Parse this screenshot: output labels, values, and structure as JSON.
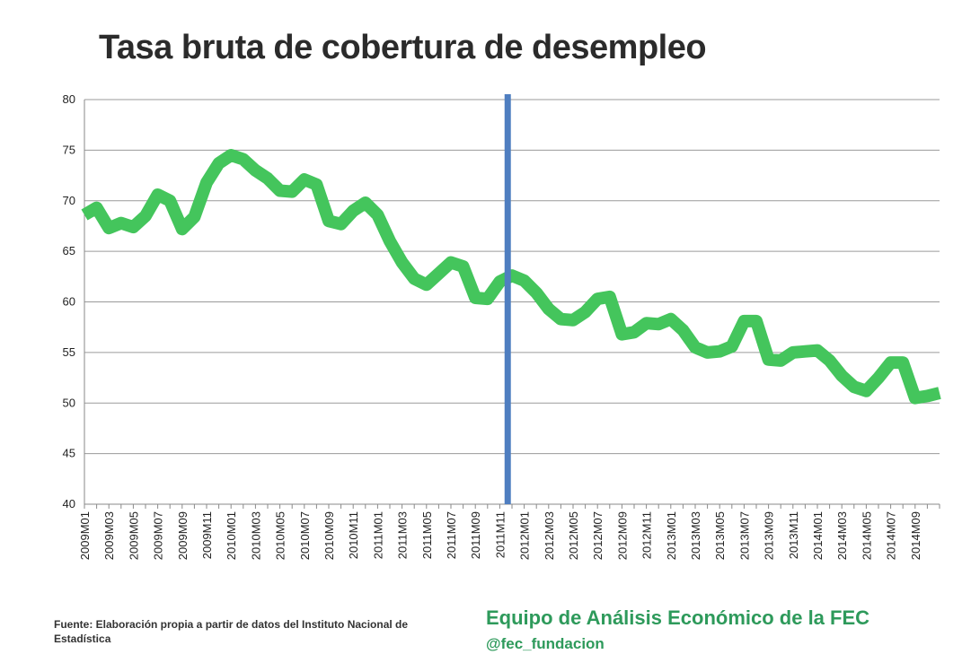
{
  "chart_data": {
    "type": "line",
    "title": "Tasa bruta de cobertura de desempleo",
    "xlabel": "",
    "ylabel": "",
    "ylim": [
      40,
      80
    ],
    "yticks": [
      40,
      45,
      50,
      55,
      60,
      65,
      70,
      75,
      80
    ],
    "grid": true,
    "legend": "none",
    "x": [
      "2009M01",
      "2009M02",
      "2009M03",
      "2009M04",
      "2009M05",
      "2009M06",
      "2009M07",
      "2009M08",
      "2009M09",
      "2009M10",
      "2009M11",
      "2009M12",
      "2010M01",
      "2010M02",
      "2010M03",
      "2010M04",
      "2010M05",
      "2010M06",
      "2010M07",
      "2010M08",
      "2010M09",
      "2010M10",
      "2010M11",
      "2010M12",
      "2011M01",
      "2011M02",
      "2011M03",
      "2011M04",
      "2011M05",
      "2011M06",
      "2011M07",
      "2011M08",
      "2011M09",
      "2011M10",
      "2011M11",
      "2011M12",
      "2012M01",
      "2012M02",
      "2012M03",
      "2012M04",
      "2012M05",
      "2012M06",
      "2012M07",
      "2012M08",
      "2012M09",
      "2012M10",
      "2012M11",
      "2012M12",
      "2013M01",
      "2013M02",
      "2013M03",
      "2013M04",
      "2013M05",
      "2013M06",
      "2013M07",
      "2013M08",
      "2013M09",
      "2013M10",
      "2013M11",
      "2013M12",
      "2014M01",
      "2014M02",
      "2014M03",
      "2014M04",
      "2014M05",
      "2014M06",
      "2014M07",
      "2014M08",
      "2014M09",
      "2014M10",
      "2014M11"
    ],
    "x_tick_labels": [
      "2009M01",
      "2009M03",
      "2009M05",
      "2009M07",
      "2009M09",
      "2009M11",
      "2010M01",
      "2010M03",
      "2010M05",
      "2010M07",
      "2010M09",
      "2010M11",
      "2011M01",
      "2011M03",
      "2011M05",
      "2011M07",
      "2011M09",
      "2011M11",
      "2012M01",
      "2012M03",
      "2012M05",
      "2012M07",
      "2012M09",
      "2012M11",
      "2013M01",
      "2013M03",
      "2013M05",
      "2013M07",
      "2013M09",
      "2013M11",
      "2014M01",
      "2014M03",
      "2014M05",
      "2014M07",
      "2014M09"
    ],
    "series": [
      {
        "values": [
          68.6,
          69.3,
          67.3,
          67.8,
          67.4,
          68.5,
          70.6,
          70.0,
          67.2,
          68.4,
          71.8,
          73.7,
          74.5,
          74.1,
          73.0,
          72.2,
          71.0,
          70.9,
          72.1,
          71.6,
          68.0,
          67.7,
          69.0,
          69.8,
          68.6,
          66.0,
          63.9,
          62.3,
          61.7,
          62.8,
          63.9,
          63.5,
          60.4,
          60.3,
          62.0,
          62.6,
          62.1,
          60.9,
          59.3,
          58.3,
          58.2,
          59.0,
          60.3,
          60.5,
          56.8,
          57.0,
          57.9,
          57.8,
          58.3,
          57.2,
          55.5,
          55.0,
          55.1,
          55.6,
          58.1,
          58.1,
          54.3,
          54.2,
          55.0,
          55.1,
          55.2,
          54.2,
          52.7,
          51.6,
          51.2,
          52.5,
          54.0,
          54.0,
          50.5,
          50.7,
          51.0
        ],
        "color": "#44c55c"
      }
    ],
    "annotations": [
      {
        "type": "vertical-line",
        "x": "2011M12",
        "color": "#4f7ec0"
      }
    ]
  },
  "footer": {
    "source": "Fuente: Elaboración propia a partir de datos del Instituto Nacional de Estadística",
    "brand": "Equipo de Análisis Económico de la FEC",
    "handle": "@fec_fundacion"
  }
}
